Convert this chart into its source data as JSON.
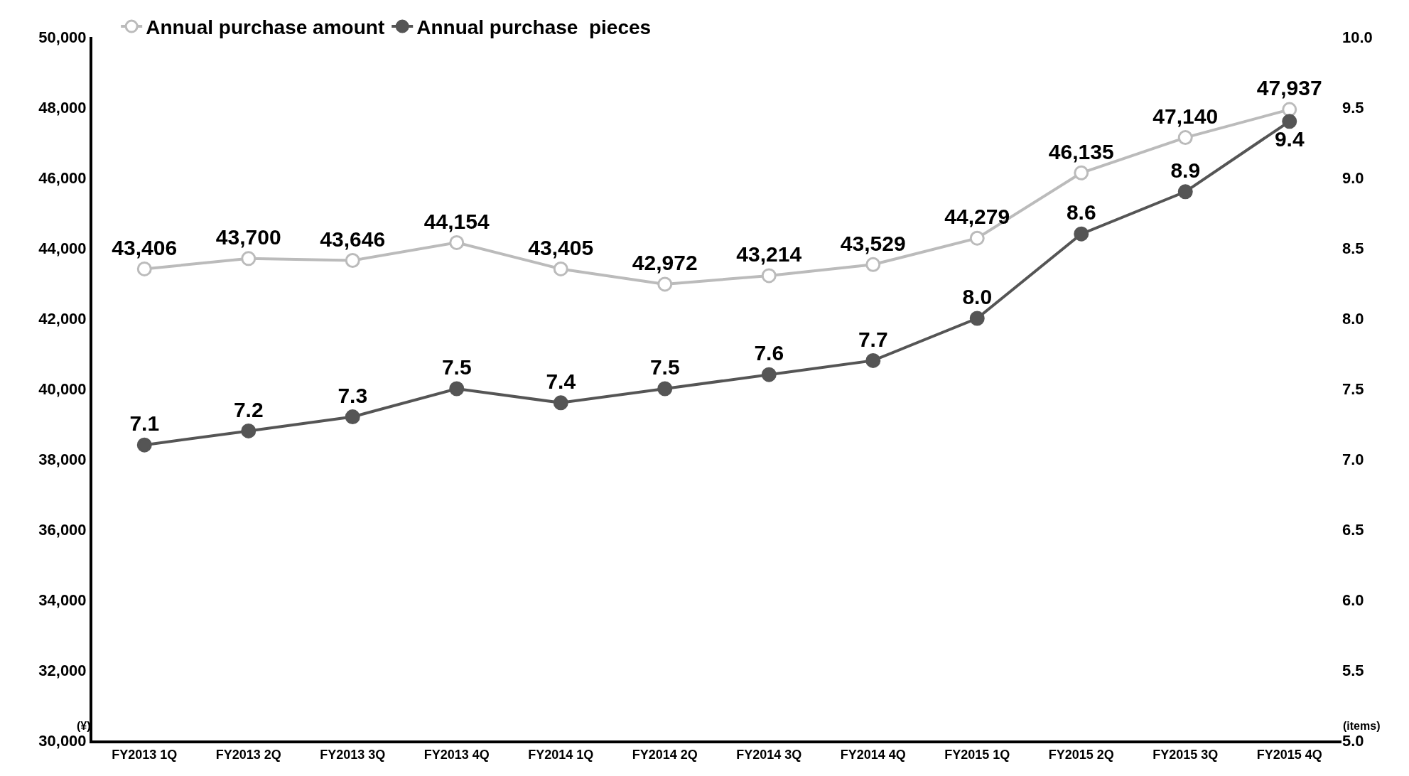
{
  "chart_data": {
    "type": "line",
    "categories": [
      "FY2013 1Q",
      "FY2013 2Q",
      "FY2013 3Q",
      "FY2013 4Q",
      "FY2014 1Q",
      "FY2014 2Q",
      "FY2014 3Q",
      "FY2014 4Q",
      "FY2015 1Q",
      "FY2015 2Q",
      "FY2015 3Q",
      "FY2015 4Q"
    ],
    "series": [
      {
        "name": "Annual purchase amount",
        "color": "#bbbbbb",
        "values": [
          43406,
          43700,
          43646,
          44154,
          43405,
          42972,
          43214,
          43529,
          44279,
          46135,
          47140,
          47937
        ],
        "value_labels": [
          "43,406",
          "43,700",
          "43,646",
          "44,154",
          "43,405",
          "42,972",
          "43,214",
          "43,529",
          "44,279",
          "46,135",
          "47,140",
          "47,937"
        ]
      },
      {
        "name": "Annual purchase  pieces",
        "color": "#555555",
        "axis": "y2",
        "values": [
          7.1,
          7.2,
          7.3,
          7.5,
          7.4,
          7.5,
          7.6,
          7.7,
          8.0,
          8.6,
          8.9,
          9.4
        ],
        "value_labels": [
          "7.1",
          "7.2",
          "7.3",
          "7.5",
          "7.4",
          "7.5",
          "7.6",
          "7.7",
          "8.0",
          "8.6",
          "8.9",
          "9.4"
        ]
      }
    ],
    "ylim": [
      30000,
      50000
    ],
    "yticks": [
      {
        "value": 30000,
        "label": "30,000"
      },
      {
        "value": 32000,
        "label": "32,000"
      },
      {
        "value": 34000,
        "label": "34,000"
      },
      {
        "value": 36000,
        "label": "36,000"
      },
      {
        "value": 38000,
        "label": "38,000"
      },
      {
        "value": 40000,
        "label": "40,000"
      },
      {
        "value": 42000,
        "label": "42,000"
      },
      {
        "value": 44000,
        "label": "44,000"
      },
      {
        "value": 46000,
        "label": "46,000"
      },
      {
        "value": 48000,
        "label": "48,000"
      },
      {
        "value": 50000,
        "label": "50,000"
      }
    ],
    "y2lim": [
      5,
      10
    ],
    "y2ticks": [
      {
        "value": 5,
        "label": "5.0"
      },
      {
        "value": 5.5,
        "label": "5.5"
      },
      {
        "value": 6,
        "label": "6.0"
      },
      {
        "value": 6.5,
        "label": "6.5"
      },
      {
        "value": 7,
        "label": "7.0"
      },
      {
        "value": 7.5,
        "label": "7.5"
      },
      {
        "value": 8,
        "label": "8.0"
      },
      {
        "value": 8.5,
        "label": "8.5"
      },
      {
        "value": 9,
        "label": "9.0"
      },
      {
        "value": 9.5,
        "label": "9.5"
      },
      {
        "value": 10,
        "label": "10.0"
      }
    ],
    "annotations": [
      "(¥)",
      "(items)"
    ],
    "grid": false,
    "legend": "top left",
    "marker": "circle",
    "line_style": "solid"
  }
}
